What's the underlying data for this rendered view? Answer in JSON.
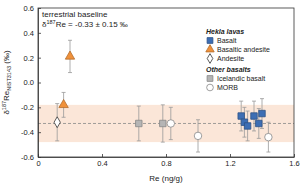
{
  "chart_data": {
    "type": "scatter",
    "annotation": {
      "line1": "terrestrial baseline",
      "line2": {
        "prefix": "δ",
        "sup": "187",
        "main": "Re = -0.33 ± 0.15 ‰"
      }
    },
    "baseline": {
      "value": -0.33,
      "error": 0.15,
      "color": "#fbe6d8"
    },
    "xlabel": "Re (ng/g)",
    "ylabel": {
      "prefix": "δ",
      "sup": "187",
      "main": "Re",
      "sub": "NIST3143",
      "suffix": " (‰)"
    },
    "xlim": [
      0,
      1.6
    ],
    "xticks": [
      0,
      0.4,
      0.8,
      1.2,
      1.6
    ],
    "ylim": [
      -0.6,
      0.6
    ],
    "yticks": [
      -0.6,
      -0.4,
      -0.2,
      {
        "value": 0,
        "label": "0.0"
      },
      0.2,
      0.4,
      0.6
    ],
    "grid": false,
    "legend": "right",
    "groups": [
      {
        "title": "Hekla lavas",
        "series": [
          {
            "name": "Basalt",
            "color": "#3d6eb4",
            "marker": "square",
            "x": [
              1.27,
              1.29,
              1.31,
              1.35,
              1.38,
              1.4
            ],
            "values": [
              -0.27,
              -0.32,
              -0.35,
              -0.27,
              -0.33,
              -0.25
            ],
            "errors": [
              0.12,
              0.12,
              0.12,
              0.12,
              0.12,
              0.12
            ]
          },
          {
            "name": "Basaltic andesite",
            "color": "#f0913a",
            "marker": "triangle",
            "x": [
              0.2,
              0.16
            ],
            "values": [
              0.21,
              -0.18
            ],
            "errors": [
              0.13,
              0.1
            ]
          },
          {
            "name": "Andesite",
            "color": "#ffffff",
            "marker": "diamond",
            "x": [
              0.12
            ],
            "values": [
              -0.32
            ],
            "errors": [
              0.15
            ]
          }
        ]
      },
      {
        "title": "Other basalts",
        "series": [
          {
            "name": "Icelandic basalt",
            "color": "#b5b5b5",
            "marker": "square",
            "x": [
              0.63,
              0.78
            ],
            "values": [
              -0.33,
              -0.33
            ],
            "errors": [
              0.14,
              0.15
            ]
          },
          {
            "name": "MORB",
            "color": "#ffffff",
            "marker": "circle",
            "x": [
              0.83,
              1.0,
              1.44
            ],
            "values": [
              -0.33,
              -0.43,
              -0.44
            ],
            "errors": [
              0.13,
              0.13,
              0.12
            ]
          }
        ]
      }
    ]
  }
}
